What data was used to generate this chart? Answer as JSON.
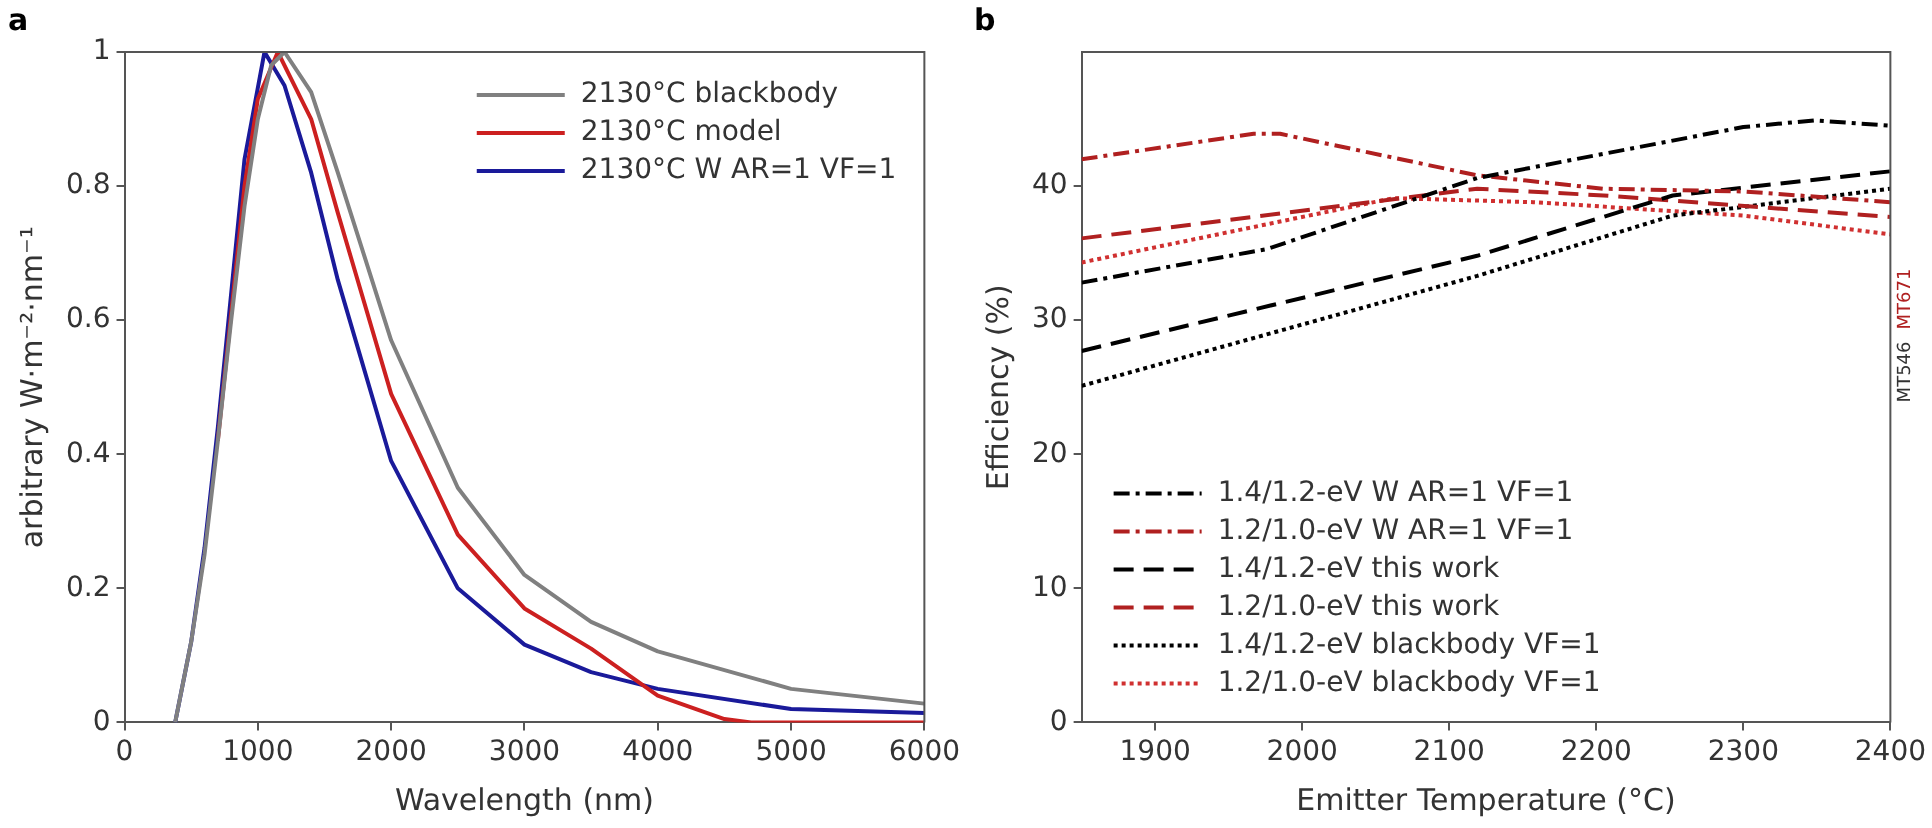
{
  "chart_data": [
    {
      "type": "line",
      "title": "a",
      "xlabel": "Wavelength (nm)",
      "ylabel": "arbitrary W·m⁻²·nm⁻¹",
      "xlim": [
        0,
        6000
      ],
      "xticks": [
        0,
        1000,
        2000,
        3000,
        4000,
        5000,
        6000
      ],
      "ylim": [
        0,
        1
      ],
      "yticks": [
        0,
        0.2,
        0.4,
        0.6,
        0.8,
        1
      ],
      "grid": false,
      "legend": "top right",
      "marker": "none",
      "line_style": "solid",
      "series": [
        {
          "name": "2130°C blackbody",
          "color": "#808080",
          "x": [
            380,
            500,
            600,
            700,
            800,
            900,
            1000,
            1100,
            1200,
            1400,
            1600,
            2000,
            2500,
            3000,
            3500,
            4000,
            5000,
            6000
          ],
          "values": [
            0,
            0.12,
            0.25,
            0.42,
            0.6,
            0.77,
            0.9,
            0.98,
            1.0,
            0.94,
            0.82,
            0.57,
            0.35,
            0.22,
            0.15,
            0.106,
            0.05,
            0.028
          ]
        },
        {
          "name": "2130°C model",
          "color": "#cc2020",
          "x": [
            700,
            800,
            900,
            1000,
            1150,
            1400,
            1600,
            2000,
            2500,
            3000,
            3500,
            4000,
            4500,
            4700,
            6000
          ],
          "values": [
            0.42,
            0.61,
            0.8,
            0.93,
            1.0,
            0.9,
            0.76,
            0.49,
            0.28,
            0.17,
            0.11,
            0.04,
            0.005,
            0,
            0
          ]
        },
        {
          "name": "2130°C W AR=1 VF=1",
          "color": "#1a1a9a",
          "x": [
            380,
            500,
            600,
            700,
            800,
            900,
            1050,
            1200,
            1400,
            1600,
            2000,
            2500,
            3000,
            3500,
            4000,
            5000,
            6000
          ],
          "values": [
            0,
            0.12,
            0.26,
            0.44,
            0.64,
            0.84,
            1.0,
            0.95,
            0.82,
            0.66,
            0.39,
            0.2,
            0.116,
            0.075,
            0.05,
            0.02,
            0.014
          ]
        }
      ]
    },
    {
      "type": "line",
      "title": "b",
      "xlabel": "Emitter Temperature (°C)",
      "ylabel": "Efficiency (%)",
      "xlim": [
        1850,
        2400
      ],
      "xticks": [
        1900,
        2000,
        2100,
        2200,
        2300,
        2400
      ],
      "ylim": [
        0,
        50
      ],
      "yticks": [
        0,
        10,
        20,
        30,
        40
      ],
      "grid": false,
      "legend": "bottom left",
      "marker": "none",
      "annotations": [
        "MT546",
        "MT671"
      ],
      "series": [
        {
          "name": "1.4/1.2-eV W AR=1 VF=1",
          "color": "#000000",
          "line_style": "dashdot",
          "x": [
            1850,
            1976,
            2119,
            2300,
            2348,
            2400
          ],
          "values": [
            32.8,
            35.3,
            40.6,
            44.4,
            44.9,
            44.5
          ]
        },
        {
          "name": "1.2/1.0-eV W AR=1 VF=1",
          "color": "#b02020",
          "line_style": "dashdot",
          "x": [
            1850,
            1967,
            1985,
            2119,
            2205,
            2300,
            2400
          ],
          "values": [
            42.0,
            43.9,
            43.9,
            40.8,
            39.8,
            39.6,
            38.8
          ]
        },
        {
          "name": "1.4/1.2-eV this work",
          "color": "#000000",
          "line_style": "dashed",
          "x": [
            1850,
            2119,
            2252,
            2400
          ],
          "values": [
            27.7,
            34.8,
            39.3,
            41.1
          ]
        },
        {
          "name": "1.2/1.0-eV this work",
          "color": "#b02020",
          "line_style": "dashed",
          "x": [
            1850,
            2119,
            2205,
            2400
          ],
          "values": [
            36.1,
            39.8,
            39.3,
            37.7
          ]
        },
        {
          "name": "1.4/1.2-eV blackbody VF=1",
          "color": "#000000",
          "line_style": "dotted",
          "x": [
            1850,
            2119,
            2252,
            2400
          ],
          "values": [
            25.1,
            33.3,
            37.8,
            39.8
          ]
        },
        {
          "name": "1.2/1.0-eV blackbody VF=1",
          "color": "#d03030",
          "line_style": "dotted",
          "x": [
            1850,
            2062,
            2157,
            2300,
            2400
          ],
          "values": [
            34.3,
            39.1,
            38.8,
            37.8,
            36.4
          ]
        }
      ]
    }
  ]
}
